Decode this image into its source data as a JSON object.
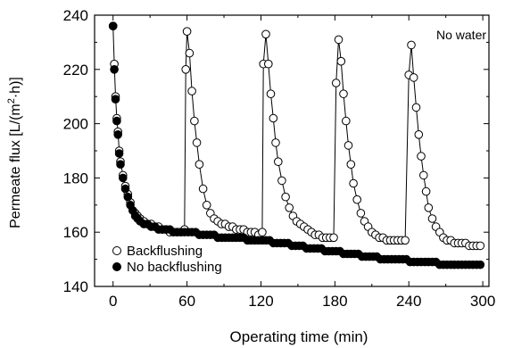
{
  "chart_data": {
    "type": "scatter",
    "xlabel": "Operating time (min)",
    "ylabel_parts": {
      "main": "Permeate flux [L/(m",
      "sup": "2",
      "end": "·h)]"
    },
    "annotation": "No water",
    "xlim": [
      -15,
      305
    ],
    "ylim": [
      140,
      240
    ],
    "xticks": [
      0,
      60,
      120,
      180,
      240,
      300
    ],
    "yticks": [
      140,
      160,
      180,
      200,
      220,
      240
    ],
    "legend_position": "bottom-left",
    "grid": false,
    "series": [
      {
        "name": "Backflushing",
        "marker": "open-circle",
        "connected": true,
        "x": [
          0,
          1,
          2,
          3,
          4,
          5,
          6,
          8,
          10,
          12,
          14,
          16,
          18,
          20,
          22,
          25,
          28,
          31,
          34,
          37,
          40,
          43,
          46,
          49,
          52,
          55,
          58,
          59,
          60,
          62,
          64,
          66,
          68,
          70,
          73,
          76,
          79,
          82,
          85,
          88,
          91,
          94,
          97,
          100,
          103,
          106,
          109,
          112,
          115,
          118,
          121,
          122,
          124,
          126,
          128,
          130,
          132,
          134,
          137,
          140,
          143,
          146,
          149,
          152,
          155,
          158,
          161,
          164,
          167,
          170,
          173,
          176,
          179,
          181,
          183,
          185,
          187,
          189,
          191,
          193,
          195,
          198,
          201,
          204,
          207,
          210,
          213,
          216,
          219,
          222,
          225,
          228,
          231,
          234,
          237,
          240,
          242,
          244,
          246,
          248,
          250,
          252,
          254,
          256,
          259,
          262,
          265,
          268,
          271,
          274,
          277,
          280,
          283,
          286,
          289,
          292,
          295,
          298
        ],
        "y": [
          236,
          222,
          210,
          202,
          197,
          190,
          186,
          181,
          177,
          174,
          171,
          168,
          167,
          166,
          165,
          164,
          163,
          163,
          162,
          162,
          161,
          161,
          160,
          160,
          160,
          160,
          161,
          220,
          234,
          226,
          212,
          201,
          193,
          185,
          176,
          170,
          167,
          165,
          164,
          163,
          163,
          162,
          162,
          161,
          161,
          161,
          160,
          160,
          160,
          159,
          160,
          222,
          233,
          222,
          211,
          202,
          193,
          186,
          179,
          173,
          169,
          166,
          164,
          163,
          162,
          161,
          160,
          159,
          159,
          158,
          158,
          158,
          158,
          215,
          231,
          223,
          211,
          201,
          192,
          185,
          178,
          172,
          167,
          164,
          162,
          160,
          159,
          158,
          158,
          157,
          157,
          157,
          157,
          157,
          157,
          218,
          229,
          217,
          206,
          196,
          188,
          181,
          175,
          169,
          165,
          162,
          160,
          158,
          157,
          157,
          156,
          156,
          156,
          156,
          155,
          155,
          155,
          155
        ]
      },
      {
        "name": "No backflushing",
        "marker": "filled-circle",
        "connected": false,
        "x": [
          0,
          1,
          2,
          3,
          4,
          5,
          6,
          8,
          10,
          12,
          14,
          16,
          18,
          20,
          22,
          25,
          28,
          31,
          34,
          37,
          40,
          43,
          46,
          49,
          52,
          55,
          58,
          61,
          64,
          67,
          70,
          73,
          76,
          79,
          82,
          85,
          88,
          91,
          94,
          97,
          100,
          103,
          106,
          109,
          112,
          115,
          118,
          121,
          124,
          127,
          130,
          133,
          136,
          139,
          142,
          145,
          148,
          151,
          154,
          157,
          160,
          163,
          166,
          169,
          172,
          175,
          178,
          181,
          184,
          187,
          190,
          193,
          196,
          199,
          202,
          205,
          208,
          211,
          214,
          217,
          220,
          223,
          226,
          229,
          232,
          235,
          238,
          241,
          244,
          247,
          250,
          253,
          256,
          259,
          262,
          265,
          268,
          271,
          274,
          277,
          280,
          283,
          286,
          289,
          292,
          295,
          298
        ],
        "y": [
          236,
          220,
          209,
          201,
          196,
          189,
          185,
          180,
          176,
          173,
          170,
          168,
          166,
          165,
          164,
          163,
          163,
          162,
          162,
          161,
          161,
          161,
          161,
          160,
          160,
          160,
          160,
          160,
          160,
          160,
          159,
          159,
          159,
          159,
          159,
          158,
          158,
          158,
          158,
          158,
          158,
          158,
          158,
          157,
          157,
          157,
          157,
          157,
          157,
          157,
          156,
          156,
          156,
          156,
          156,
          155,
          155,
          155,
          155,
          154,
          154,
          154,
          154,
          154,
          153,
          153,
          153,
          153,
          153,
          152,
          152,
          152,
          152,
          152,
          151,
          151,
          151,
          151,
          151,
          150,
          150,
          150,
          150,
          150,
          150,
          150,
          150,
          149,
          149,
          149,
          149,
          149,
          149,
          149,
          149,
          148,
          148,
          148,
          148,
          148,
          148,
          148,
          148,
          148,
          148,
          148,
          148
        ]
      }
    ]
  }
}
